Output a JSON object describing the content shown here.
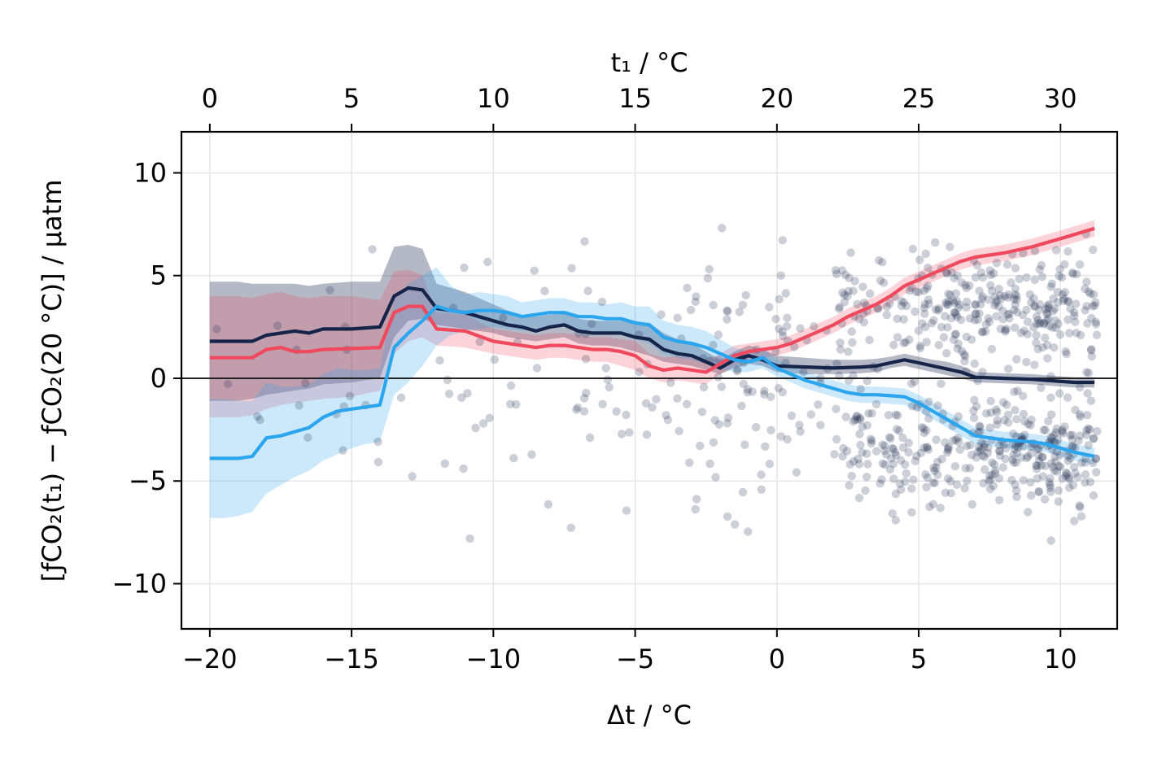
{
  "chart_data": {
    "type": "line",
    "title": "",
    "xlabel": "Δt / °C",
    "top_xlabel": "t₁ / °C",
    "ylabel": "[ƒCO₂(t₁) − ƒCO₂(20 °C)] / µatm",
    "xlim": [
      -21.0,
      12.0
    ],
    "ylim": [
      -12.2,
      12.0
    ],
    "grid": true,
    "x_ticks": [
      -20,
      -15,
      -10,
      -5,
      0,
      5,
      10
    ],
    "x_tick_labels": [
      "−20",
      "−15",
      "−10",
      "−5",
      "0",
      "5",
      "10"
    ],
    "y_ticks": [
      -10,
      -5,
      0,
      5,
      10
    ],
    "y_tick_labels": [
      "−10",
      "−5",
      "0",
      "5",
      "10"
    ],
    "top_ticks": [
      -20,
      -15,
      -10,
      -5,
      0,
      5,
      10
    ],
    "top_tick_labels": [
      "0",
      "5",
      "10",
      "15",
      "20",
      "25",
      "30"
    ],
    "zero_line": 0,
    "colors": {
      "dark": "#16244a",
      "red": "#f0485c",
      "blue": "#2aa5ee",
      "scatter": "#16244a"
    },
    "series": [
      {
        "name": "dark",
        "color": "#16244a",
        "x": [
          -20,
          -19,
          -18.5,
          -18,
          -17,
          -16.5,
          -16,
          -15,
          -14,
          -13.5,
          -13,
          -12.5,
          -12,
          -11,
          -10,
          -9.5,
          -9,
          -8.5,
          -8,
          -7.5,
          -7,
          -6.5,
          -6,
          -5.5,
          -5,
          -4.5,
          -4,
          -3.5,
          -3,
          -2.5,
          -2,
          -1.5,
          -1,
          -0.5,
          0,
          1,
          2,
          3,
          3.5,
          4,
          4.5,
          5,
          5.5,
          6,
          6.5,
          7,
          8,
          9,
          9.5,
          10,
          10.5,
          11.2
        ],
        "y": [
          1.8,
          1.8,
          1.8,
          2.1,
          2.3,
          2.2,
          2.4,
          2.4,
          2.5,
          4.0,
          4.4,
          4.3,
          3.4,
          3.2,
          2.8,
          2.6,
          2.5,
          2.3,
          2.5,
          2.6,
          2.3,
          2.2,
          2.2,
          2.2,
          2.0,
          1.9,
          1.4,
          1.2,
          1.1,
          0.8,
          0.5,
          0.9,
          1.1,
          0.9,
          0.6,
          0.55,
          0.5,
          0.55,
          0.6,
          0.75,
          0.9,
          0.75,
          0.6,
          0.45,
          0.3,
          0.05,
          0.0,
          -0.05,
          -0.1,
          -0.15,
          -0.2,
          -0.2
        ],
        "lower": [
          -1.1,
          -1.1,
          -1.0,
          -0.8,
          -0.6,
          -0.5,
          -0.3,
          -0.2,
          0.0,
          2.0,
          2.8,
          2.9,
          2.6,
          2.4,
          2.2,
          2.0,
          1.9,
          1.8,
          1.9,
          2.0,
          1.7,
          1.6,
          1.6,
          1.5,
          1.3,
          1.1,
          0.8,
          0.7,
          0.6,
          0.4,
          0.2,
          0.5,
          0.7,
          0.6,
          0.3,
          0.2,
          0.2,
          0.25,
          0.3,
          0.5,
          0.6,
          0.45,
          0.3,
          0.15,
          0.0,
          -0.2,
          -0.25,
          -0.3,
          -0.35,
          -0.4,
          -0.45,
          -0.45
        ],
        "upper": [
          4.7,
          4.7,
          4.6,
          4.6,
          4.6,
          4.5,
          4.6,
          4.7,
          4.7,
          6.4,
          6.5,
          6.3,
          4.6,
          4.2,
          3.6,
          3.3,
          3.1,
          3.0,
          3.1,
          3.2,
          2.9,
          2.8,
          2.8,
          2.8,
          2.7,
          2.7,
          2.2,
          1.9,
          1.7,
          1.3,
          0.9,
          1.3,
          1.6,
          1.4,
          1.1,
          1.0,
          0.9,
          0.9,
          0.95,
          1.05,
          1.2,
          1.05,
          0.9,
          0.8,
          0.6,
          0.3,
          0.25,
          0.2,
          0.15,
          0.1,
          0.05,
          0.05
        ]
      },
      {
        "name": "red",
        "color": "#f0485c",
        "x": [
          -20,
          -19,
          -18.5,
          -18,
          -17.5,
          -17,
          -16.5,
          -16,
          -15,
          -14,
          -13.5,
          -13,
          -12.5,
          -12,
          -11,
          -10,
          -9.5,
          -9,
          -8.5,
          -8,
          -7.5,
          -7,
          -6.5,
          -6,
          -5.5,
          -5,
          -4.5,
          -4,
          -3.5,
          -3,
          -2.5,
          -2,
          -1.5,
          -1,
          -0.5,
          0,
          0.5,
          1,
          1.5,
          2,
          2.5,
          3,
          3.5,
          4,
          4.5,
          5,
          5.5,
          6,
          6.5,
          7,
          8,
          9,
          9.5,
          10,
          10.5,
          11.2
        ],
        "y": [
          1.0,
          1.0,
          1.0,
          1.4,
          1.5,
          1.3,
          1.3,
          1.4,
          1.45,
          1.5,
          3.2,
          3.5,
          3.5,
          2.4,
          2.3,
          1.8,
          1.7,
          1.6,
          1.5,
          1.6,
          1.6,
          1.5,
          1.4,
          1.4,
          1.3,
          1.1,
          0.6,
          0.4,
          0.5,
          0.4,
          0.3,
          0.7,
          1.1,
          1.3,
          1.4,
          1.5,
          1.7,
          2.0,
          2.3,
          2.6,
          3.0,
          3.3,
          3.6,
          4.0,
          4.5,
          4.8,
          5.1,
          5.4,
          5.7,
          5.9,
          6.1,
          6.4,
          6.6,
          6.8,
          7.0,
          7.3
        ],
        "lower": [
          -1.9,
          -1.9,
          -1.8,
          -1.5,
          -1.3,
          -1.2,
          -1.1,
          -1.0,
          -0.9,
          -0.6,
          1.2,
          1.8,
          2.0,
          1.6,
          1.5,
          1.2,
          1.1,
          1.0,
          0.9,
          1.0,
          1.0,
          0.9,
          0.8,
          0.8,
          0.6,
          0.4,
          0.0,
          -0.2,
          -0.1,
          -0.2,
          -0.3,
          0.2,
          0.6,
          0.9,
          1.0,
          1.1,
          1.3,
          1.6,
          1.9,
          2.2,
          2.6,
          2.9,
          3.2,
          3.6,
          4.1,
          4.4,
          4.7,
          5.0,
          5.3,
          5.5,
          5.7,
          6.0,
          6.2,
          6.4,
          6.6,
          6.9
        ],
        "upper": [
          4.0,
          4.0,
          3.9,
          4.1,
          4.2,
          4.0,
          3.9,
          4.0,
          4.0,
          3.8,
          5.2,
          5.3,
          5.0,
          3.2,
          3.1,
          2.4,
          2.3,
          2.2,
          2.1,
          2.2,
          2.2,
          2.1,
          2.0,
          2.0,
          1.9,
          1.8,
          1.2,
          1.0,
          1.1,
          1.0,
          0.9,
          1.2,
          1.6,
          1.7,
          1.8,
          1.9,
          2.1,
          2.4,
          2.7,
          3.0,
          3.4,
          3.7,
          4.0,
          4.4,
          4.9,
          5.2,
          5.5,
          5.8,
          6.1,
          6.3,
          6.5,
          6.8,
          7.0,
          7.2,
          7.4,
          7.7
        ]
      },
      {
        "name": "blue",
        "color": "#2aa5ee",
        "x": [
          -20,
          -19.5,
          -19,
          -18.5,
          -18,
          -17.5,
          -17,
          -16.5,
          -16,
          -15.5,
          -15,
          -14.5,
          -14,
          -13.5,
          -13,
          -12.5,
          -12,
          -11.5,
          -11,
          -10.5,
          -10,
          -9.5,
          -9,
          -8.5,
          -8,
          -7.5,
          -7,
          -6.5,
          -6,
          -5.5,
          -5,
          -4.5,
          -4,
          -3.5,
          -3,
          -2.5,
          -2,
          -1.5,
          -1,
          -0.5,
          0,
          0.5,
          1,
          1.5,
          2,
          2.5,
          3,
          3.5,
          4,
          4.5,
          5,
          5.5,
          6,
          6.5,
          7,
          7.5,
          8,
          9,
          9.5,
          10,
          10.5,
          11.2
        ],
        "y": [
          -3.9,
          -3.9,
          -3.9,
          -3.8,
          -2.9,
          -2.8,
          -2.6,
          -2.4,
          -1.9,
          -1.6,
          -1.5,
          -1.4,
          -1.3,
          1.5,
          2.2,
          2.8,
          3.5,
          3.3,
          3.2,
          3.3,
          3.3,
          3.2,
          3.0,
          3.1,
          3.2,
          3.2,
          3.0,
          3.0,
          2.9,
          2.9,
          2.7,
          2.6,
          2.0,
          1.8,
          1.7,
          1.5,
          1.2,
          0.9,
          0.8,
          1.0,
          0.5,
          0.2,
          -0.1,
          -0.3,
          -0.5,
          -0.7,
          -0.8,
          -0.8,
          -0.85,
          -0.9,
          -1.2,
          -1.6,
          -2.0,
          -2.4,
          -2.8,
          -2.9,
          -3.0,
          -3.1,
          -3.2,
          -3.4,
          -3.6,
          -3.8
        ],
        "lower": [
          -6.8,
          -6.8,
          -6.7,
          -6.5,
          -5.6,
          -5.2,
          -4.8,
          -4.5,
          -4.0,
          -3.7,
          -3.4,
          -3.2,
          -3.1,
          -0.8,
          -0.2,
          0.6,
          1.6,
          2.1,
          2.3,
          2.4,
          2.5,
          2.4,
          2.3,
          2.4,
          2.5,
          2.5,
          2.3,
          2.3,
          2.2,
          2.1,
          1.9,
          1.7,
          1.2,
          1.0,
          0.9,
          0.7,
          0.5,
          0.3,
          0.3,
          0.5,
          0.1,
          -0.2,
          -0.5,
          -0.7,
          -0.9,
          -1.1,
          -1.2,
          -1.2,
          -1.25,
          -1.3,
          -1.6,
          -2.0,
          -2.4,
          -2.8,
          -3.2,
          -3.3,
          -3.4,
          -3.5,
          -3.6,
          -3.8,
          -4.0,
          -4.2
        ],
        "upper": [
          -1.0,
          -1.0,
          -1.1,
          -1.1,
          -0.2,
          -0.4,
          -0.4,
          -0.3,
          0.2,
          0.5,
          0.4,
          0.4,
          0.5,
          3.8,
          4.6,
          5.0,
          5.4,
          4.5,
          4.1,
          4.2,
          4.1,
          4.0,
          3.7,
          3.8,
          3.9,
          3.9,
          3.7,
          3.7,
          3.6,
          3.7,
          3.5,
          3.5,
          2.8,
          2.6,
          2.5,
          2.3,
          1.9,
          1.5,
          1.3,
          1.5,
          0.9,
          0.6,
          0.3,
          0.1,
          -0.1,
          -0.3,
          -0.4,
          -0.4,
          -0.45,
          -0.5,
          -0.8,
          -1.2,
          -1.6,
          -2.0,
          -2.4,
          -2.5,
          -2.6,
          -2.7,
          -2.8,
          -3.0,
          -3.2,
          -3.4
        ]
      }
    ],
    "scatter_note": "many semi-transparent points, denser toward positive Δt",
    "scatter": {
      "seed": 7,
      "groups": [
        {
          "xmin": -20,
          "xmax": -12,
          "count": 22,
          "ymin": -10,
          "ymax": 8
        },
        {
          "xmin": -12,
          "xmax": -3,
          "count": 70,
          "ymin": -11,
          "ymax": 12
        },
        {
          "xmin": -3,
          "xmax": 2,
          "count": 90,
          "ymin": -12,
          "ymax": 12
        },
        {
          "xmin": 2,
          "xmax": 5,
          "count": 150,
          "ymin": -12,
          "ymax": 12
        },
        {
          "xmin": 5,
          "xmax": 8,
          "count": 230,
          "ymin": -12,
          "ymax": 12
        },
        {
          "xmin": 8,
          "xmax": 11.3,
          "count": 300,
          "ymin": -12,
          "ymax": 12
        }
      ]
    }
  }
}
